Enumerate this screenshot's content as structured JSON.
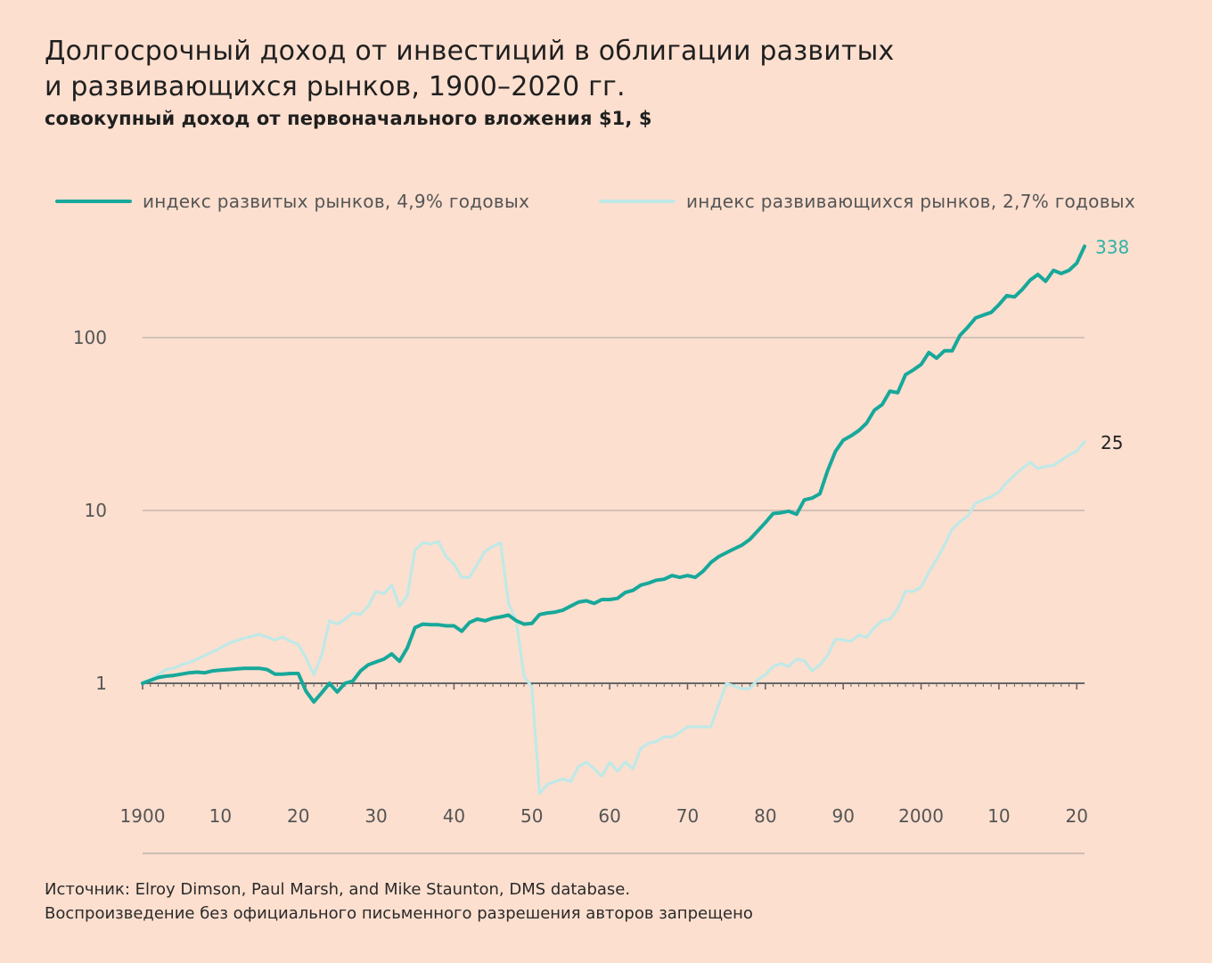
{
  "title": "Долгосрочный доход от инвестиций в облигации развитых\nи развивающихся рынков, 1900–2020 гг.",
  "subtitle": "совокупный доход от первоначального вложения $1, $",
  "colors": {
    "developed": "#17a89a",
    "emerging": "#bfe9e7",
    "background": "#fcdfcf",
    "end_label_developed": "#2fb3a8"
  },
  "chart_data": {
    "type": "line",
    "y_scale": "log",
    "ylim": [
      0.2,
      400
    ],
    "y_ticks": [
      1,
      10,
      100
    ],
    "y_tick_labels": [
      "1",
      "10",
      "100"
    ],
    "xlim": [
      1900,
      2021
    ],
    "x_ticks": [
      1900,
      1910,
      1920,
      1930,
      1940,
      1950,
      1960,
      1970,
      1980,
      1990,
      2000,
      2010,
      2020
    ],
    "x_tick_labels": [
      "1900",
      "10",
      "20",
      "30",
      "40",
      "50",
      "60",
      "70",
      "80",
      "90",
      "2000",
      "10",
      "20"
    ],
    "grid": "horizontal",
    "legend_position": "top",
    "series": [
      {
        "name": "индекс развитых рынков, 4,9% годовых",
        "end_label": "338",
        "points": [
          [
            1900,
            1.0
          ],
          [
            1901,
            1.04
          ],
          [
            1902,
            1.08
          ],
          [
            1903,
            1.1
          ],
          [
            1904,
            1.11
          ],
          [
            1905,
            1.13
          ],
          [
            1906,
            1.15
          ],
          [
            1907,
            1.16
          ],
          [
            1908,
            1.15
          ],
          [
            1909,
            1.18
          ],
          [
            1910,
            1.19
          ],
          [
            1911,
            1.2
          ],
          [
            1912,
            1.21
          ],
          [
            1913,
            1.22
          ],
          [
            1914,
            1.22
          ],
          [
            1915,
            1.22
          ],
          [
            1916,
            1.2
          ],
          [
            1917,
            1.13
          ],
          [
            1918,
            1.13
          ],
          [
            1919,
            1.14
          ],
          [
            1920,
            1.14
          ],
          [
            1921,
            0.9
          ],
          [
            1922,
            0.78
          ],
          [
            1923,
            0.88
          ],
          [
            1924,
            1.0
          ],
          [
            1925,
            0.89
          ],
          [
            1926,
            1.0
          ],
          [
            1927,
            1.03
          ],
          [
            1928,
            1.18
          ],
          [
            1929,
            1.28
          ],
          [
            1930,
            1.33
          ],
          [
            1931,
            1.38
          ],
          [
            1932,
            1.48
          ],
          [
            1933,
            1.34
          ],
          [
            1934,
            1.6
          ],
          [
            1935,
            2.1
          ],
          [
            1936,
            2.2
          ],
          [
            1937,
            2.18
          ],
          [
            1938,
            2.18
          ],
          [
            1939,
            2.15
          ],
          [
            1940,
            2.15
          ],
          [
            1941,
            2.0
          ],
          [
            1942,
            2.25
          ],
          [
            1943,
            2.35
          ],
          [
            1944,
            2.3
          ],
          [
            1945,
            2.38
          ],
          [
            1946,
            2.42
          ],
          [
            1947,
            2.48
          ],
          [
            1948,
            2.3
          ],
          [
            1949,
            2.2
          ],
          [
            1950,
            2.22
          ],
          [
            1951,
            2.5
          ],
          [
            1952,
            2.55
          ],
          [
            1953,
            2.58
          ],
          [
            1954,
            2.65
          ],
          [
            1955,
            2.8
          ],
          [
            1956,
            2.95
          ],
          [
            1957,
            3.0
          ],
          [
            1958,
            2.9
          ],
          [
            1959,
            3.05
          ],
          [
            1960,
            3.05
          ],
          [
            1961,
            3.1
          ],
          [
            1962,
            3.35
          ],
          [
            1963,
            3.45
          ],
          [
            1964,
            3.7
          ],
          [
            1965,
            3.8
          ],
          [
            1966,
            3.95
          ],
          [
            1967,
            4.0
          ],
          [
            1968,
            4.2
          ],
          [
            1969,
            4.1
          ],
          [
            1970,
            4.2
          ],
          [
            1971,
            4.1
          ],
          [
            1972,
            4.45
          ],
          [
            1973,
            5.0
          ],
          [
            1974,
            5.4
          ],
          [
            1975,
            5.7
          ],
          [
            1976,
            6.0
          ],
          [
            1977,
            6.3
          ],
          [
            1978,
            6.8
          ],
          [
            1979,
            7.6
          ],
          [
            1980,
            8.5
          ],
          [
            1981,
            9.6
          ],
          [
            1982,
            9.7
          ],
          [
            1983,
            9.9
          ],
          [
            1984,
            9.5
          ],
          [
            1985,
            11.5
          ],
          [
            1986,
            11.8
          ],
          [
            1987,
            12.5
          ],
          [
            1988,
            17.0
          ],
          [
            1989,
            22.0
          ],
          [
            1990,
            25.5
          ],
          [
            1991,
            27.0
          ],
          [
            1992,
            29.0
          ],
          [
            1993,
            32.0
          ],
          [
            1994,
            38.0
          ],
          [
            1995,
            41.0
          ],
          [
            1996,
            49.0
          ],
          [
            1997,
            48.0
          ],
          [
            1998,
            61.0
          ],
          [
            1999,
            65.0
          ],
          [
            2000,
            70.0
          ],
          [
            2001,
            82.0
          ],
          [
            2002,
            76.0
          ],
          [
            2003,
            84.0
          ],
          [
            2004,
            84.0
          ],
          [
            2005,
            103.0
          ],
          [
            2006,
            115.0
          ],
          [
            2007,
            130.0
          ],
          [
            2008,
            135.0
          ],
          [
            2009,
            140.0
          ],
          [
            2010,
            155.0
          ],
          [
            2011,
            175.0
          ],
          [
            2012,
            172.0
          ],
          [
            2013,
            190.0
          ],
          [
            2014,
            215.0
          ],
          [
            2015,
            232.0
          ],
          [
            2016,
            212.0
          ],
          [
            2017,
            245.0
          ],
          [
            2018,
            235.0
          ],
          [
            2019,
            245.0
          ],
          [
            2020,
            270.0
          ],
          [
            2021,
            338.0
          ]
        ]
      },
      {
        "name": "индекс развивающихся рынков, 2,7% годовых",
        "end_label": "25",
        "points": [
          [
            1900,
            1.0
          ],
          [
            1901,
            1.05
          ],
          [
            1902,
            1.12
          ],
          [
            1903,
            1.2
          ],
          [
            1904,
            1.22
          ],
          [
            1905,
            1.28
          ],
          [
            1906,
            1.32
          ],
          [
            1907,
            1.38
          ],
          [
            1908,
            1.45
          ],
          [
            1909,
            1.52
          ],
          [
            1910,
            1.6
          ],
          [
            1911,
            1.7
          ],
          [
            1912,
            1.76
          ],
          [
            1913,
            1.82
          ],
          [
            1914,
            1.87
          ],
          [
            1915,
            1.92
          ],
          [
            1916,
            1.85
          ],
          [
            1917,
            1.78
          ],
          [
            1918,
            1.85
          ],
          [
            1919,
            1.75
          ],
          [
            1920,
            1.68
          ],
          [
            1921,
            1.4
          ],
          [
            1922,
            1.12
          ],
          [
            1923,
            1.45
          ],
          [
            1924,
            2.3
          ],
          [
            1925,
            2.2
          ],
          [
            1926,
            2.35
          ],
          [
            1927,
            2.55
          ],
          [
            1928,
            2.5
          ],
          [
            1929,
            2.8
          ],
          [
            1930,
            3.4
          ],
          [
            1931,
            3.3
          ],
          [
            1932,
            3.7
          ],
          [
            1933,
            2.8
          ],
          [
            1934,
            3.2
          ],
          [
            1935,
            5.9
          ],
          [
            1936,
            6.5
          ],
          [
            1937,
            6.4
          ],
          [
            1938,
            6.6
          ],
          [
            1939,
            5.4
          ],
          [
            1940,
            4.9
          ],
          [
            1941,
            4.1
          ],
          [
            1942,
            4.1
          ],
          [
            1943,
            4.9
          ],
          [
            1944,
            5.8
          ],
          [
            1945,
            6.2
          ],
          [
            1946,
            6.5
          ],
          [
            1947,
            2.9
          ],
          [
            1948,
            2.3
          ],
          [
            1949,
            1.1
          ],
          [
            1950,
            0.95
          ],
          [
            1951,
            0.23
          ],
          [
            1952,
            0.26
          ],
          [
            1953,
            0.27
          ],
          [
            1954,
            0.28
          ],
          [
            1955,
            0.27
          ],
          [
            1956,
            0.33
          ],
          [
            1957,
            0.35
          ],
          [
            1958,
            0.32
          ],
          [
            1959,
            0.29
          ],
          [
            1960,
            0.35
          ],
          [
            1961,
            0.31
          ],
          [
            1962,
            0.35
          ],
          [
            1963,
            0.32
          ],
          [
            1964,
            0.42
          ],
          [
            1965,
            0.45
          ],
          [
            1966,
            0.46
          ],
          [
            1967,
            0.49
          ],
          [
            1968,
            0.49
          ],
          [
            1969,
            0.52
          ],
          [
            1970,
            0.56
          ],
          [
            1971,
            0.56
          ],
          [
            1972,
            0.56
          ],
          [
            1973,
            0.56
          ],
          [
            1974,
            0.75
          ],
          [
            1975,
            1.0
          ],
          [
            1976,
            0.96
          ],
          [
            1977,
            0.93
          ],
          [
            1978,
            0.93
          ],
          [
            1979,
            1.05
          ],
          [
            1980,
            1.12
          ],
          [
            1981,
            1.25
          ],
          [
            1982,
            1.3
          ],
          [
            1983,
            1.25
          ],
          [
            1984,
            1.38
          ],
          [
            1985,
            1.35
          ],
          [
            1986,
            1.18
          ],
          [
            1987,
            1.28
          ],
          [
            1988,
            1.45
          ],
          [
            1989,
            1.8
          ],
          [
            1990,
            1.78
          ],
          [
            1991,
            1.75
          ],
          [
            1992,
            1.9
          ],
          [
            1993,
            1.85
          ],
          [
            1994,
            2.1
          ],
          [
            1995,
            2.3
          ],
          [
            1996,
            2.35
          ],
          [
            1997,
            2.7
          ],
          [
            1998,
            3.4
          ],
          [
            1999,
            3.4
          ],
          [
            2000,
            3.6
          ],
          [
            2001,
            4.4
          ],
          [
            2002,
            5.2
          ],
          [
            2003,
            6.3
          ],
          [
            2004,
            7.8
          ],
          [
            2005,
            8.6
          ],
          [
            2006,
            9.3
          ],
          [
            2007,
            11.0
          ],
          [
            2008,
            11.5
          ],
          [
            2009,
            12.0
          ],
          [
            2010,
            12.8
          ],
          [
            2011,
            14.5
          ],
          [
            2012,
            16.0
          ],
          [
            2013,
            17.5
          ],
          [
            2014,
            19.0
          ],
          [
            2015,
            17.5
          ],
          [
            2016,
            18.0
          ],
          [
            2017,
            18.2
          ],
          [
            2018,
            19.5
          ],
          [
            2019,
            21.0
          ],
          [
            2020,
            22.0
          ],
          [
            2021,
            25.0
          ]
        ]
      }
    ]
  },
  "source_lines": [
    "Источник: Elroy Dimson, Paul Marsh, and Mike Staunton, DMS database.",
    "Воспроизведение без официального письменного разрешения авторов запрещено"
  ]
}
